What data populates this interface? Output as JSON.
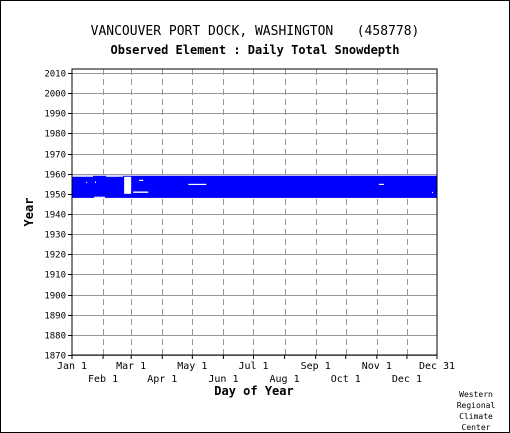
{
  "title": "VANCOUVER PORT DOCK, WASHINGTON   (458778)",
  "subtitle": "Observed Element : Daily Total Snowdepth",
  "credit": [
    "Western",
    "Regional",
    "Climate",
    "Center"
  ],
  "chart_data": {
    "type": "bar",
    "title": "VANCOUVER PORT DOCK, WASHINGTON   (458778)",
    "subtitle": "Observed Element : Daily Total Snowdepth",
    "xlabel": "Day of Year",
    "ylabel": "Year",
    "xlim": [
      1,
      365
    ],
    "ylim": [
      1870,
      2012
    ],
    "x_ticks_upper": [
      {
        "label": "Jan 1",
        "day": 1
      },
      {
        "label": "Mar 1",
        "day": 60
      },
      {
        "label": "May 1",
        "day": 121
      },
      {
        "label": "Jul 1",
        "day": 182
      },
      {
        "label": "Sep 1",
        "day": 244
      },
      {
        "label": "Nov 1",
        "day": 305
      },
      {
        "label": "Dec 31",
        "day": 365
      }
    ],
    "x_ticks_lower": [
      {
        "label": "Feb 1",
        "day": 32
      },
      {
        "label": "Apr 1",
        "day": 91
      },
      {
        "label": "Jun 1",
        "day": 152
      },
      {
        "label": "Aug 1",
        "day": 213
      },
      {
        "label": "Oct 1",
        "day": 274
      },
      {
        "label": "Dec 1",
        "day": 335
      }
    ],
    "y_ticks": [
      1870,
      1880,
      1890,
      1900,
      1910,
      1920,
      1930,
      1940,
      1950,
      1960,
      1970,
      1980,
      1990,
      2000,
      2010
    ],
    "grid": true,
    "color": "#0000ff",
    "data_bands": [
      {
        "name": "observed",
        "start_day": 1,
        "end_day": 365,
        "start_year": 1948,
        "end_year": 1958
      }
    ],
    "gaps": [
      {
        "start_day": 1,
        "end_day": 22,
        "year_from": 1958.5,
        "year_to": 1959
      },
      {
        "start_day": 23,
        "end_day": 34,
        "year_from": 1948,
        "year_to": 1948.6
      },
      {
        "start_day": 35,
        "end_day": 52,
        "year_from": 1958.5,
        "year_to": 1959
      },
      {
        "start_day": 53,
        "end_day": 60,
        "year_from": 1950,
        "year_to": 1958.5
      },
      {
        "start_day": 62,
        "end_day": 77,
        "year_from": 1950.5,
        "year_to": 1951.2
      },
      {
        "start_day": 68,
        "end_day": 72,
        "year_from": 1956.4,
        "year_to": 1957.0
      },
      {
        "start_day": 117,
        "end_day": 135,
        "year_from": 1954.4,
        "year_to": 1955.0
      },
      {
        "start_day": 307,
        "end_day": 312,
        "year_from": 1954.4,
        "year_to": 1955.0
      },
      {
        "start_day": 15,
        "end_day": 16,
        "year_from": 1955.4,
        "year_to": 1956.0
      },
      {
        "start_day": 24,
        "end_day": 25,
        "year_from": 1955.4,
        "year_to": 1956.2
      },
      {
        "start_day": 360,
        "end_day": 361,
        "year_from": 1950.4,
        "year_to": 1951.0
      }
    ]
  }
}
